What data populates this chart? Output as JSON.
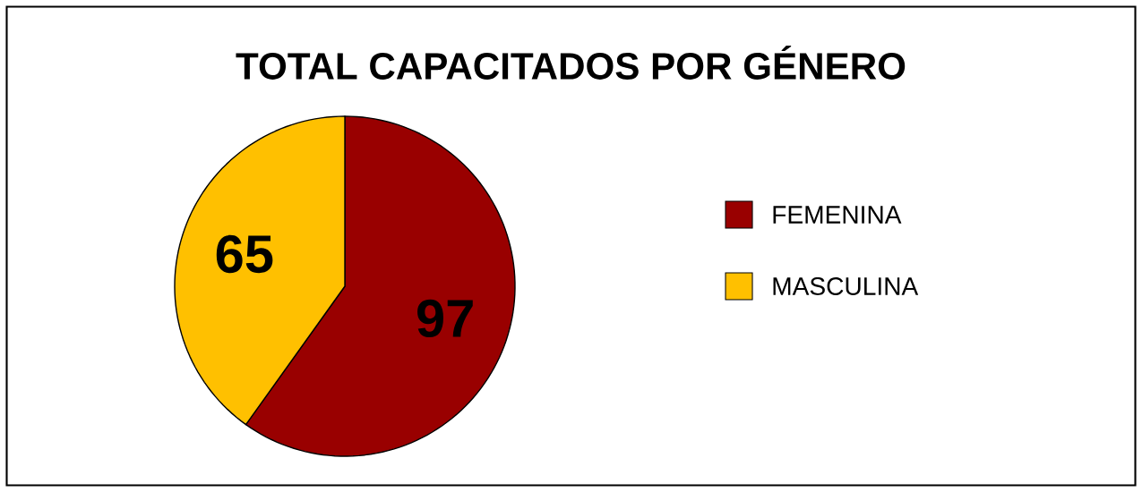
{
  "chart_data": {
    "type": "pie",
    "title": "TOTAL CAPACITADOS POR GÉNERO",
    "categories": [
      "FEMENINA",
      "MASCULINA"
    ],
    "values": [
      97,
      65
    ],
    "colors": [
      "#990000",
      "#ffc000"
    ],
    "data_labels": true,
    "legend": "right"
  }
}
